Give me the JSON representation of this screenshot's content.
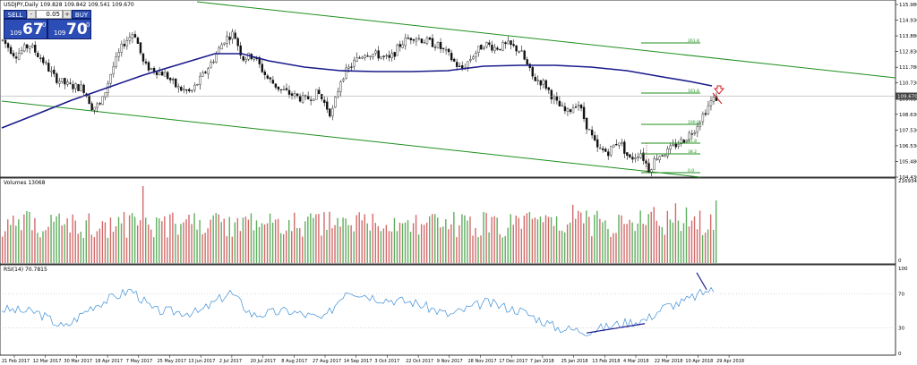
{
  "chart_data": {
    "type": "candlestick",
    "symbol_header": "USDJPY,Daily  109.828 109.842 109.541 109.670",
    "price_axis": {
      "ticks": [
        "115.980",
        "114.930",
        "113.880",
        "112.830",
        "111.780",
        "110.730",
        "109.630",
        "108.630",
        "107.530",
        "106.530",
        "105.480",
        "104.430"
      ],
      "ylim": [
        104.43,
        115.98
      ],
      "current_price_label": "109.670"
    },
    "date_axis": {
      "labels": [
        "21 Feb 2017",
        "12 Mar 2017",
        "30 Mar 2017",
        "18 Apr 2017",
        "7 May 2017",
        "25 May 2017",
        "13 Jun 2017",
        "2 Jul 2017",
        "20 Jul 2017",
        "8 Aug 2017",
        "27 Aug 2017",
        "14 Sep 2017",
        "3 Oct 2017",
        "22 Oct 2017",
        "9 Nov 2017",
        "28 Nov 2017",
        "17 Dec 2017",
        "7 Jan 2018",
        "25 Jan 2018",
        "13 Feb 2018",
        "4 Mar 2018",
        "22 Mar 2018",
        "10 Apr 2018",
        "29 Apr 2018"
      ]
    },
    "fib_levels": [
      {
        "label": "261.8"
      },
      {
        "label": "161.8"
      },
      {
        "label": "100.0"
      },
      {
        "label": "61.8"
      },
      {
        "label": "38.2"
      },
      {
        "label": "0.0"
      }
    ],
    "volume_panel": {
      "label": "Volumes 13068",
      "ticks": [
        "216934",
        "0"
      ]
    },
    "rsi_panel": {
      "label": "RSI(14) 70.7815",
      "ticks": [
        "100",
        "70",
        "30",
        "0"
      ]
    },
    "colors": {
      "bull": "#2e8b2e",
      "bear": "#b22222",
      "ma": "#1a1a8c",
      "channel": "#1f8f1f",
      "rsi": "#3d8fd8",
      "divergence": "#1a1a8c",
      "arrow": "#d41f1f"
    }
  },
  "trade_panel": {
    "sell_label": "SELL",
    "buy_label": "BUY",
    "lot_value": "0.05",
    "sell_prefix": "109",
    "sell_big": "67",
    "sell_sup": "0",
    "buy_prefix": "109",
    "buy_big": "70",
    "buy_sup": "0"
  }
}
